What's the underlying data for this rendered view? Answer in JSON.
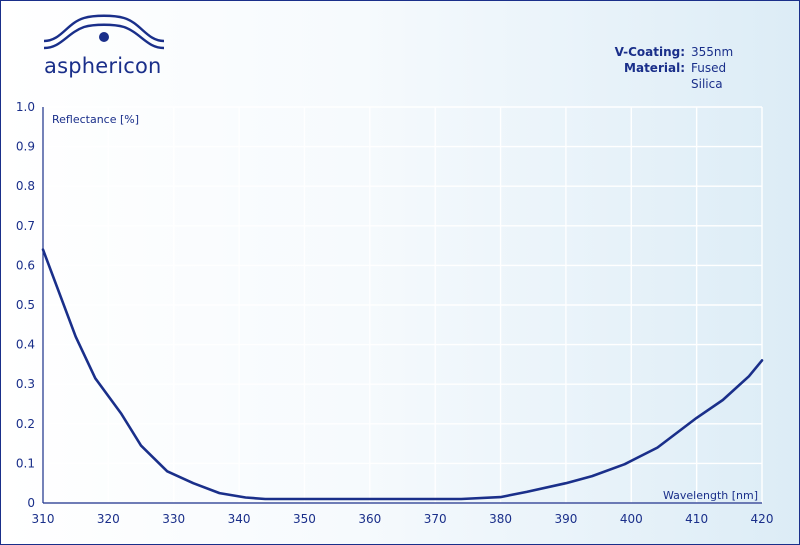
{
  "brand": {
    "name": "asphericon",
    "colors": {
      "primary": "#1a2f8a",
      "grid": "#ffffff"
    }
  },
  "info": {
    "rows": [
      {
        "key": "V-Coating:",
        "value": "355nm"
      },
      {
        "key": "Material:",
        "value": "Fused Silica"
      }
    ]
  },
  "chart_data": {
    "type": "line",
    "title": "",
    "xlabel": "Wavelength [nm]",
    "ylabel": "Reflectance [%]",
    "xlim": [
      310,
      420
    ],
    "ylim": [
      0,
      1.0
    ],
    "xticks": [
      310,
      320,
      330,
      340,
      350,
      360,
      370,
      380,
      390,
      400,
      410,
      420
    ],
    "yticks": [
      0,
      0.1,
      0.2,
      0.3,
      0.4,
      0.5,
      0.6,
      0.7,
      0.8,
      0.9,
      1.0
    ],
    "ytick_labels": [
      "0",
      "0.1",
      "0.2",
      "0.3",
      "0.4",
      "0.5",
      "0.6",
      "0.7",
      "0.8",
      "0.9",
      "1.0"
    ],
    "grid": true,
    "series": [
      {
        "color": "#1a2f8a",
        "x": [
          310,
          315,
          318,
          322,
          325,
          329,
          333,
          337,
          341,
          344,
          350,
          360,
          370,
          374,
          380,
          384,
          390,
          394,
          399,
          404,
          410,
          414,
          418,
          420
        ],
        "y": [
          0.64,
          0.42,
          0.315,
          0.225,
          0.145,
          0.08,
          0.05,
          0.025,
          0.014,
          0.01,
          0.01,
          0.01,
          0.01,
          0.01,
          0.015,
          0.028,
          0.05,
          0.068,
          0.098,
          0.14,
          0.215,
          0.26,
          0.32,
          0.36
        ]
      }
    ]
  }
}
